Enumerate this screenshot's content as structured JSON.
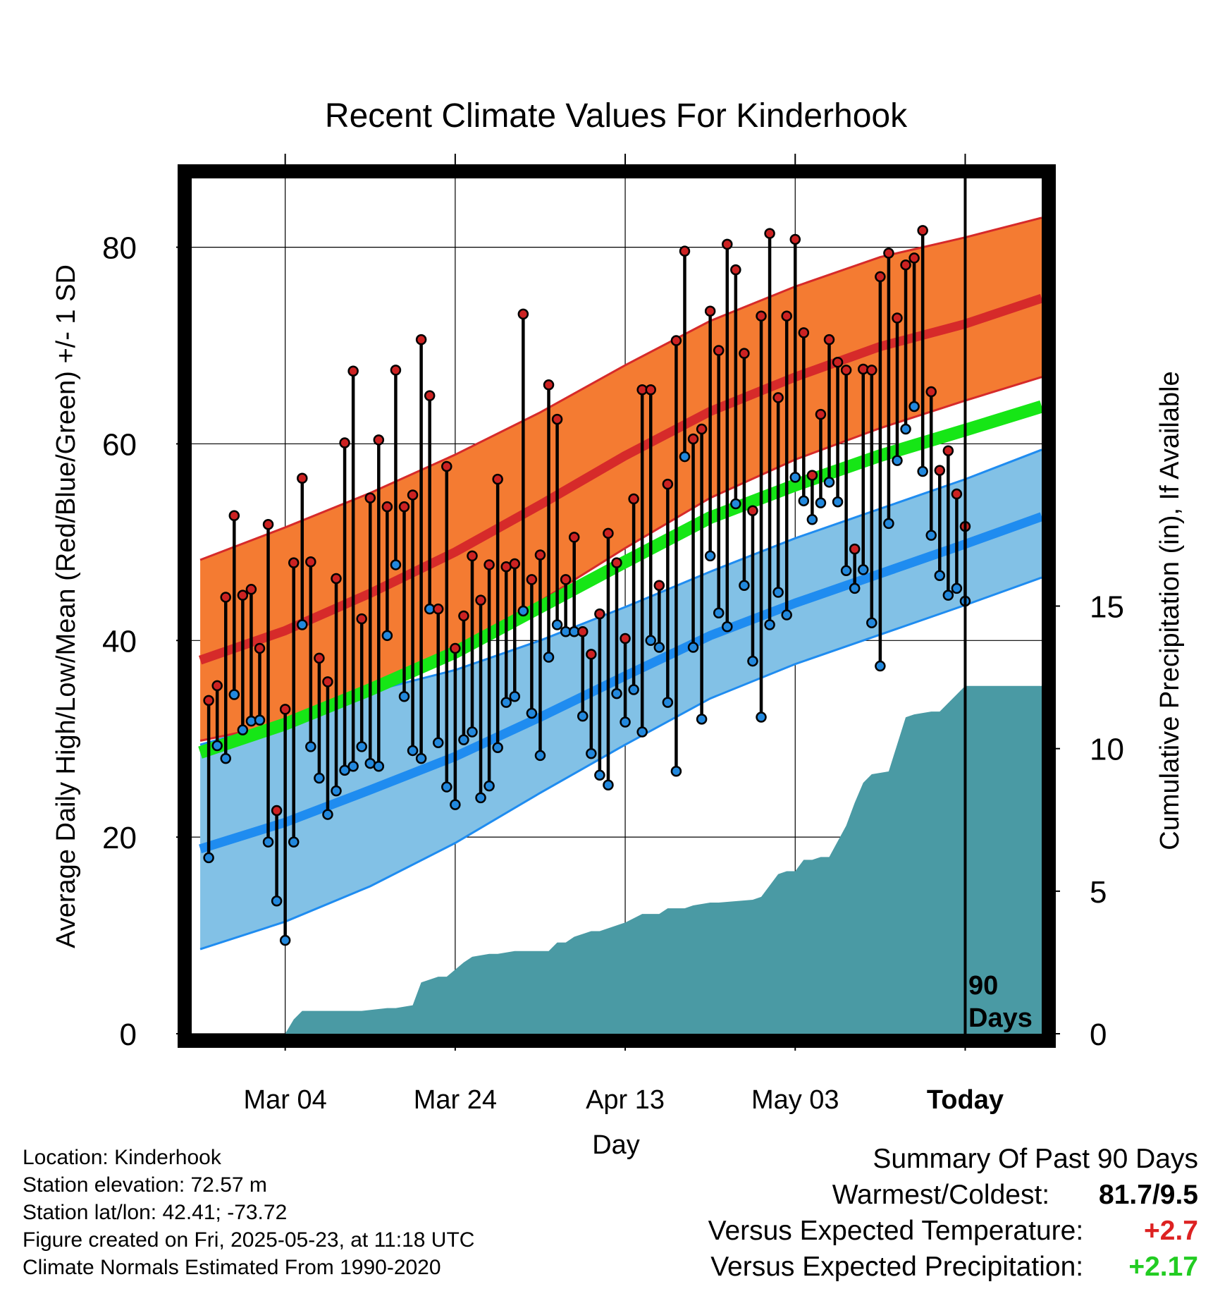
{
  "title": "Recent Climate Values For Kinderhook",
  "chart_data": {
    "type": "line",
    "title": "Recent Climate Values For Kinderhook",
    "xlabel": "Day",
    "ylabel": "Average Daily High/Low/Mean (Red/Blue/Green) +/- 1 SD",
    "y2label": "Cumulative Precipitation (in), If Available",
    "xlim_days_from_today": [
      -91,
      9
    ],
    "ylim": [
      0,
      87
    ],
    "y2lim": [
      0,
      30
    ],
    "y_ticks": [
      0,
      20,
      40,
      60,
      80
    ],
    "y2_ticks": [
      0,
      5,
      10,
      15
    ],
    "x_tick_labels": [
      "Mar 04",
      "Mar 24",
      "Apr 13",
      "May 03",
      "Today"
    ],
    "x_tick_days": [
      -80,
      -60,
      -40,
      -20,
      0
    ],
    "grid": true,
    "today_marker_text": [
      "90",
      "Days"
    ],
    "normals": {
      "x_days": [
        -90,
        -80,
        -70,
        -60,
        -50,
        -40,
        -30,
        -20,
        -10,
        0,
        9
      ],
      "high_mean": [
        38.0,
        41.0,
        44.8,
        49.0,
        53.8,
        58.8,
        63.3,
        66.8,
        69.9,
        72.2,
        74.8
      ],
      "high_sd_upper": [
        48.2,
        51.5,
        55.0,
        58.9,
        63.2,
        68.0,
        72.5,
        76.0,
        79.0,
        81.0,
        83.0
      ],
      "high_sd_lower": [
        29.8,
        31.6,
        34.6,
        39.0,
        44.0,
        49.4,
        54.5,
        58.4,
        61.6,
        64.4,
        66.8
      ],
      "mean_normal": [
        28.6,
        31.5,
        35.0,
        38.8,
        43.4,
        48.0,
        52.5,
        55.8,
        58.8,
        61.4,
        63.8
      ],
      "low_mean": [
        18.8,
        21.5,
        24.8,
        28.2,
        32.2,
        36.4,
        40.5,
        43.8,
        46.8,
        49.8,
        52.6
      ],
      "low_sd_upper": [
        29.4,
        31.8,
        34.8,
        37.0,
        40.0,
        43.4,
        47.0,
        50.4,
        53.4,
        56.4,
        59.4
      ],
      "low_sd_lower": [
        8.6,
        11.4,
        15.0,
        19.4,
        24.5,
        29.4,
        34.1,
        37.6,
        40.6,
        43.6,
        46.4
      ]
    },
    "daily_high": [
      33.9,
      35.4,
      44.4,
      52.7,
      44.6,
      45.2,
      39.2,
      51.8,
      22.7,
      33.0,
      47.9,
      56.5,
      48.0,
      38.2,
      35.8,
      46.3,
      60.1,
      67.4,
      42.2,
      54.5,
      60.4,
      53.6,
      67.5,
      53.6,
      54.8,
      70.6,
      64.9,
      43.2,
      57.7,
      39.2,
      42.5,
      48.6,
      44.1,
      47.7,
      56.4,
      47.5,
      47.8,
      73.2,
      46.2,
      48.7,
      66.0,
      62.5,
      46.2,
      50.5,
      40.9,
      38.6,
      42.7,
      50.9,
      47.9,
      40.2,
      54.4,
      65.5,
      65.5,
      45.6,
      55.9,
      70.5,
      79.6,
      60.5,
      61.5,
      73.5,
      69.5,
      80.3,
      77.7,
      69.2,
      53.2,
      73.0,
      81.4,
      64.7,
      73.0,
      80.8,
      71.3,
      56.8,
      63.0,
      70.6,
      68.3,
      67.5,
      49.3,
      67.6,
      67.5,
      77.0,
      79.4,
      72.8,
      78.2,
      78.9,
      81.7,
      65.3,
      57.3,
      59.3,
      54.9,
      51.6
    ],
    "daily_low": [
      17.9,
      29.3,
      28.0,
      34.5,
      30.9,
      31.8,
      31.9,
      19.5,
      13.5,
      9.5,
      19.5,
      41.6,
      29.2,
      26.0,
      22.3,
      24.7,
      26.8,
      27.2,
      29.2,
      27.5,
      27.2,
      40.5,
      47.7,
      34.3,
      28.8,
      28.0,
      43.2,
      29.6,
      25.1,
      23.3,
      29.9,
      30.7,
      24.0,
      25.2,
      29.1,
      33.7,
      34.3,
      43.0,
      32.6,
      28.3,
      38.3,
      41.6,
      40.9,
      40.9,
      32.3,
      28.5,
      26.3,
      25.3,
      34.6,
      31.7,
      35.0,
      30.7,
      40.0,
      39.3,
      33.7,
      26.7,
      58.7,
      39.3,
      32.0,
      48.6,
      42.8,
      41.4,
      53.9,
      45.6,
      37.9,
      32.2,
      41.6,
      44.9,
      42.6,
      56.6,
      54.2,
      52.3,
      54.0,
      56.1,
      54.1,
      47.1,
      45.3,
      47.2,
      41.8,
      37.4,
      51.9,
      58.3,
      61.5,
      63.8,
      57.2,
      50.7,
      46.6,
      44.6,
      45.3,
      44.0
    ],
    "cumulative_precip": {
      "x_days": [
        -91,
        -80,
        -79,
        -78,
        -71,
        -68,
        -67,
        -65,
        -64,
        -62,
        -61,
        -59,
        -58,
        -56,
        -55,
        -53,
        -49,
        -48,
        -47,
        -46,
        -44,
        -43,
        -40,
        -38,
        -37,
        -36,
        -35,
        -33,
        -32,
        -30,
        -29,
        -25,
        -24,
        -22,
        -21,
        -20,
        -19,
        -18,
        -17,
        -16,
        -14,
        -13,
        -12,
        -11,
        -9,
        -7,
        -6,
        -4,
        -3,
        -1,
        0,
        9
      ],
      "values": [
        0.0,
        0.0,
        0.5,
        0.8,
        0.8,
        0.9,
        0.9,
        1.0,
        1.8,
        2.0,
        2.0,
        2.5,
        2.7,
        2.8,
        2.8,
        2.9,
        2.9,
        3.2,
        3.2,
        3.4,
        3.6,
        3.6,
        3.9,
        4.2,
        4.2,
        4.2,
        4.4,
        4.4,
        4.5,
        4.6,
        4.6,
        4.7,
        4.8,
        5.6,
        5.7,
        5.7,
        6.1,
        6.1,
        6.2,
        6.2,
        7.3,
        8.1,
        8.8,
        9.1,
        9.2,
        11.1,
        11.2,
        11.3,
        11.3,
        11.9,
        12.2,
        12.2
      ]
    },
    "legend": "none"
  },
  "footer": {
    "location": "Location: Kinderhook",
    "elevation": "Station elevation: 72.57 m",
    "latlon": "Station lat/lon: 42.41; -73.72",
    "created": "Figure created on Fri, 2025-05-23, at 11:18 UTC",
    "normals_note": "Climate Normals Estimated From 1990-2020"
  },
  "summary": {
    "heading": "Summary Of Past 90 Days",
    "warmest_coldest_label": "Warmest/Coldest:",
    "warmest_coldest_value": "81.7/9.5",
    "temp_label": "Versus Expected Temperature:",
    "temp_value": "+2.7",
    "precip_label": "Versus Expected Precipitation:",
    "precip_value": "+2.17"
  },
  "colors": {
    "high_band": "#f47b32",
    "high_line": "#d62a2a",
    "low_band": "#82c1e6",
    "low_line": "#1f8cf0",
    "mean_line": "#16e616",
    "precip_fill": "#4a9aa4",
    "high_dot": "#cc2222",
    "low_dot": "#2288dd",
    "temp_delta": "#dd2222",
    "precip_delta": "#22cc22"
  }
}
